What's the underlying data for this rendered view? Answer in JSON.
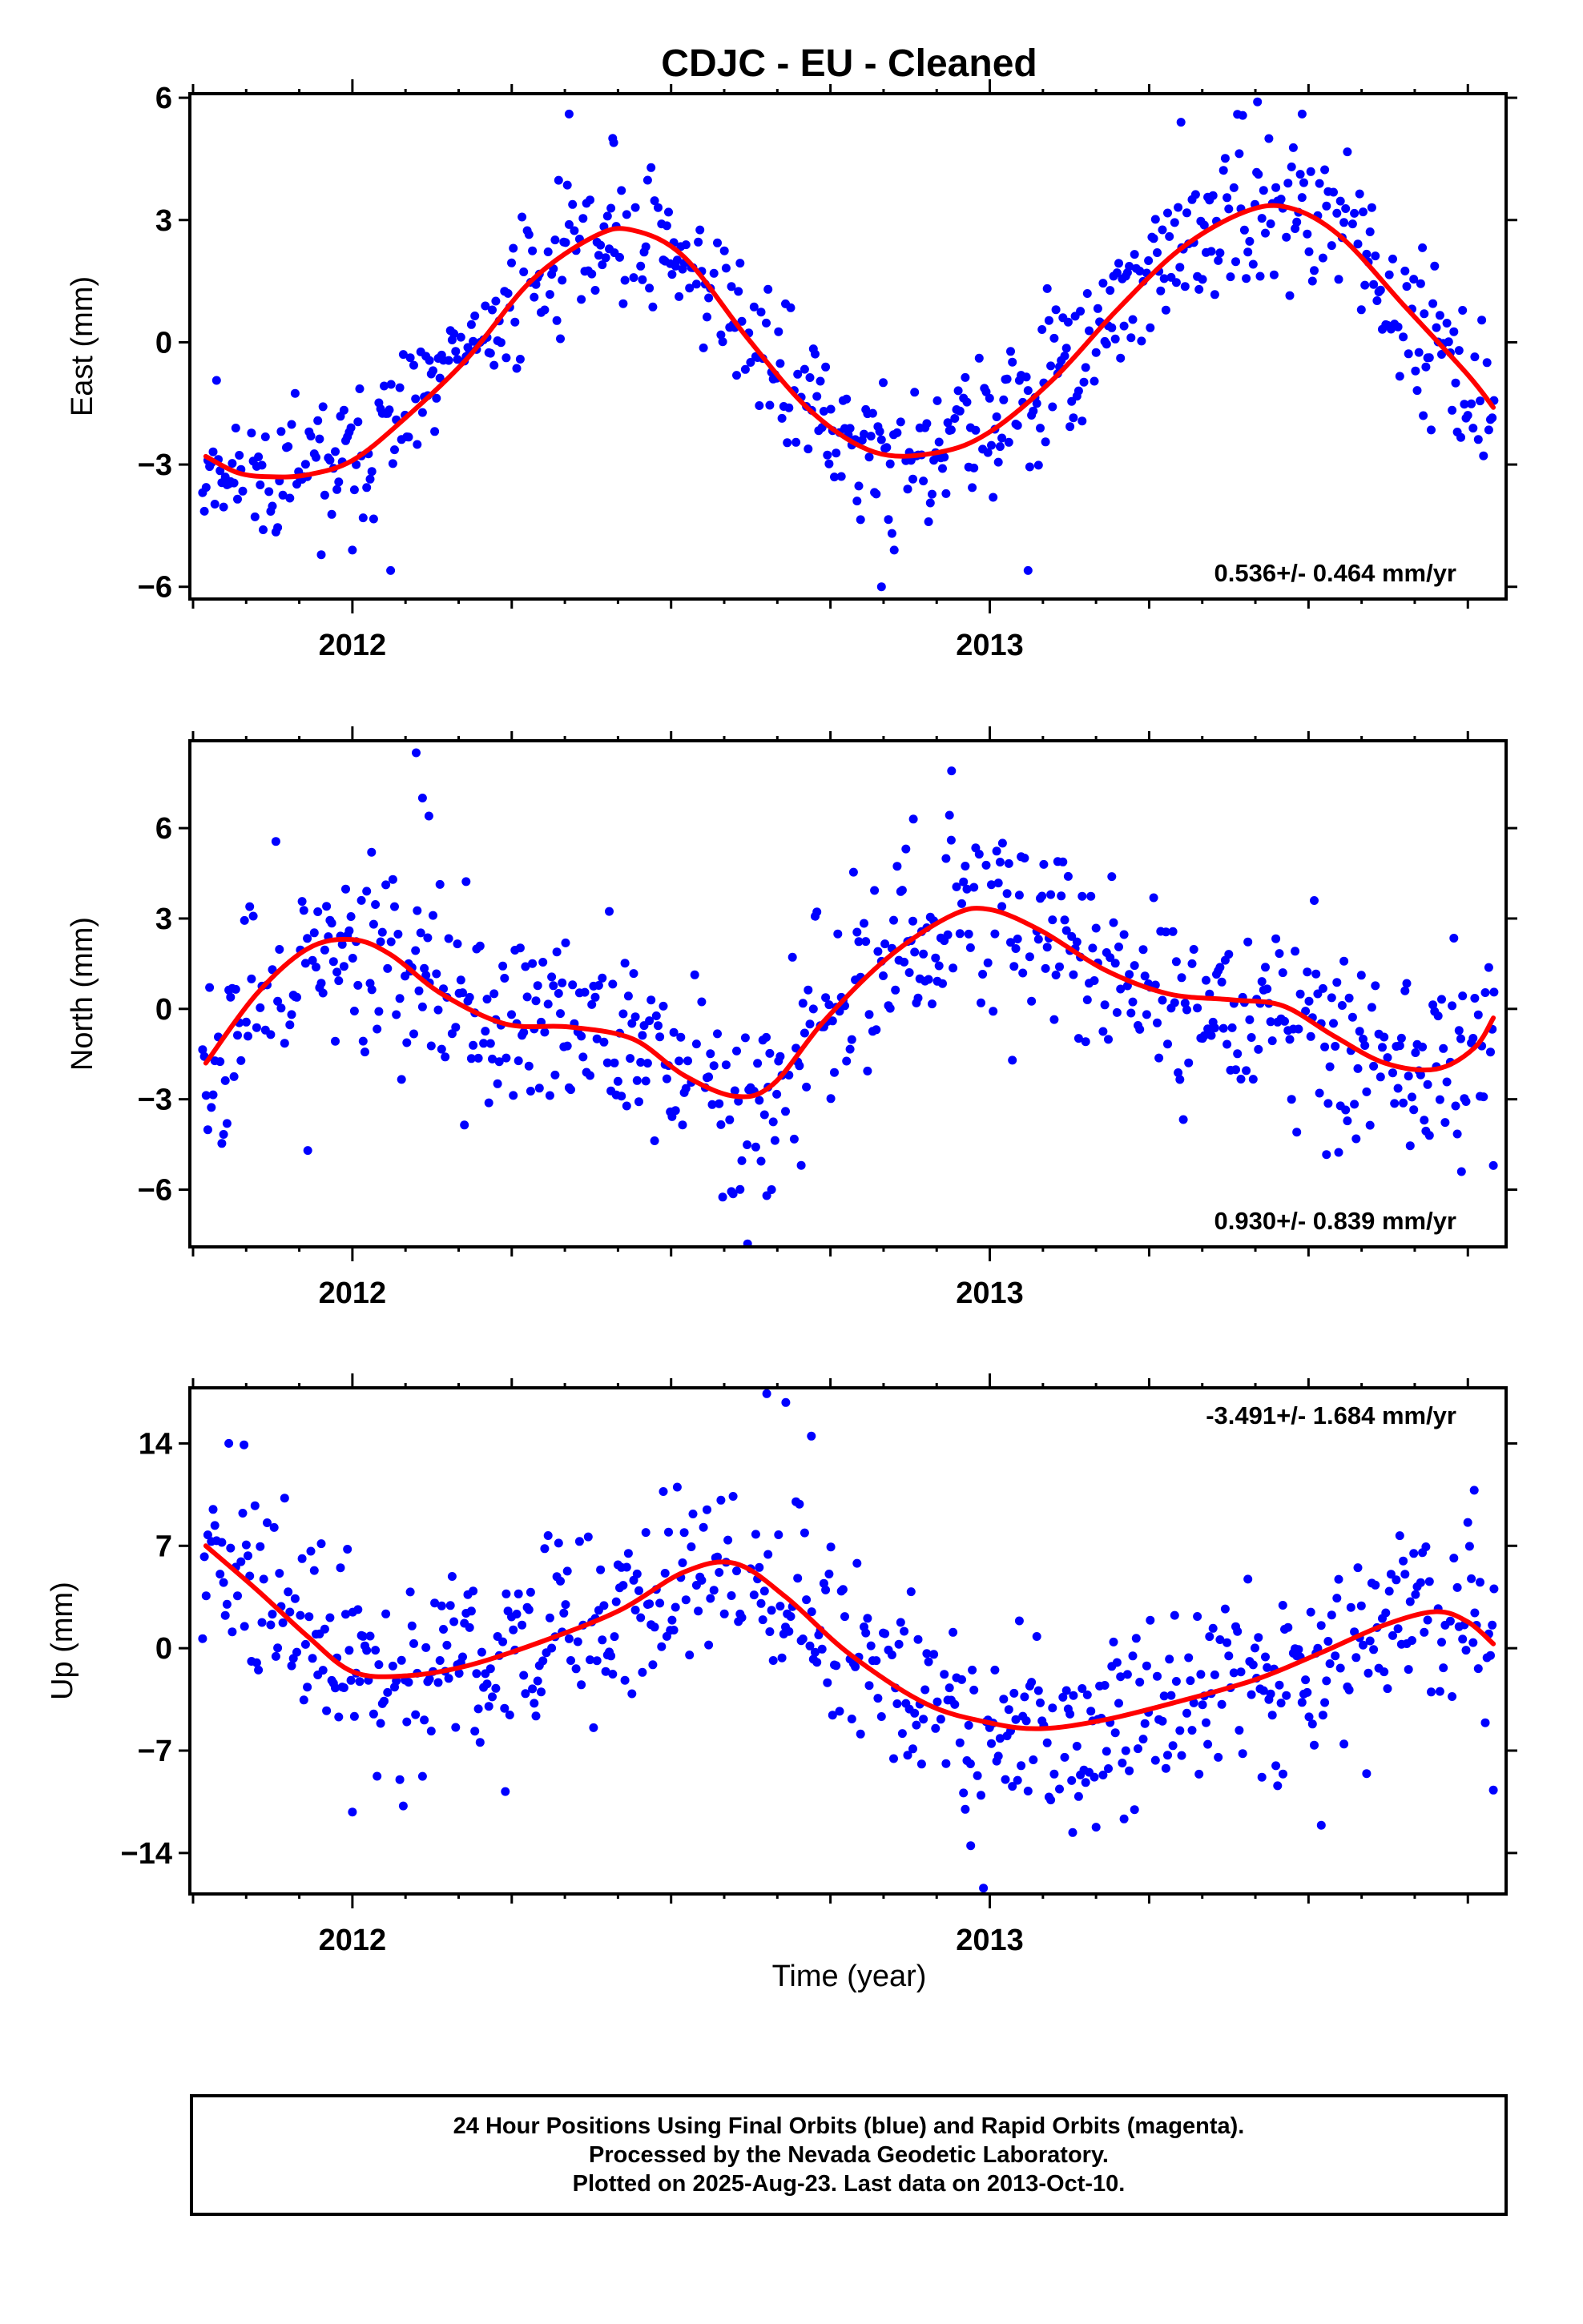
{
  "title": "CDJC  - EU - Cleaned",
  "xlabel": "Time (year)",
  "footer": {
    "line1": "24 Hour Positions Using Final Orbits (blue) and Rapid Orbits (magenta).",
    "line2": "Processed by the Nevada Geodetic Laboratory.",
    "line3": "Plotted on 2025-Aug-23. Last data on 2013-Oct-10."
  },
  "colors": {
    "points": "#0000ff",
    "fit": "#ff0000",
    "frame": "#000000"
  },
  "chart_data": [
    {
      "type": "scatter",
      "name": "east",
      "ylabel": "East (mm)",
      "rate_text": "0.536+/- 0.464 mm/yr",
      "xlim": [
        2011.745,
        2013.81
      ],
      "ylim": [
        -6.3,
        6.1
      ],
      "yticks": [
        -6,
        -3,
        0,
        3,
        6
      ],
      "xticks": [
        2012,
        2013
      ],
      "fit": {
        "x": [
          2011.77,
          2011.82,
          2011.87,
          2011.93,
          2012.0,
          2012.08,
          2012.18,
          2012.28,
          2012.38,
          2012.44,
          2012.52,
          2012.62,
          2012.72,
          2012.82,
          2012.92,
          2013.0,
          2013.1,
          2013.2,
          2013.3,
          2013.4,
          2013.47,
          2013.55,
          2013.65,
          2013.75,
          2013.79
        ],
        "y": [
          -2.8,
          -3.2,
          -3.3,
          -3.25,
          -2.9,
          -1.9,
          -0.4,
          1.5,
          2.6,
          2.75,
          2.1,
          0.1,
          -1.7,
          -2.7,
          -2.7,
          -2.2,
          -0.9,
          0.8,
          2.3,
          3.2,
          3.3,
          2.6,
          0.9,
          -0.8,
          -1.6
        ]
      },
      "points": {
        "seed": 11,
        "amplitude": 0.9,
        "outliers": [
          [
            2011.86,
            -4.6
          ],
          [
            2012.0,
            -5.1
          ],
          [
            2012.06,
            -5.6
          ],
          [
            2012.34,
            5.6
          ],
          [
            2012.41,
            4.9
          ],
          [
            2012.83,
            -6.0
          ],
          [
            2012.85,
            -5.1
          ],
          [
            2013.06,
            -5.6
          ],
          [
            2013.3,
            5.4
          ],
          [
            2013.42,
            5.9
          ],
          [
            2013.49,
            5.6
          ],
          [
            2013.68,
            -1.8
          ]
        ]
      }
    },
    {
      "type": "scatter",
      "name": "north",
      "ylabel": "North (mm)",
      "rate_text": "0.930+/- 0.839 mm/yr",
      "xlim": [
        2011.745,
        2013.81
      ],
      "ylim": [
        -7.9,
        8.9
      ],
      "yticks": [
        -6,
        -3,
        0,
        3,
        6
      ],
      "xticks": [
        2012,
        2013
      ],
      "fit": {
        "x": [
          2011.77,
          2011.85,
          2011.93,
          2012.0,
          2012.06,
          2012.14,
          2012.24,
          2012.34,
          2012.44,
          2012.52,
          2012.6,
          2012.66,
          2012.74,
          2012.84,
          2012.94,
          2013.0,
          2013.08,
          2013.18,
          2013.28,
          2013.38,
          2013.46,
          2013.54,
          2013.62,
          2013.7,
          2013.76,
          2013.79
        ],
        "y": [
          -1.8,
          0.5,
          2.0,
          2.3,
          1.8,
          0.5,
          -0.5,
          -0.6,
          -1.0,
          -2.2,
          -2.9,
          -2.5,
          -0.4,
          1.7,
          3.1,
          3.3,
          2.6,
          1.3,
          0.5,
          0.3,
          0.1,
          -0.9,
          -1.8,
          -2.0,
          -1.3,
          -0.3
        ]
      },
      "points": {
        "seed": 23,
        "amplitude": 1.6,
        "outliers": [
          [
            2011.93,
            -4.7
          ],
          [
            2012.1,
            8.5
          ],
          [
            2012.11,
            7.0
          ],
          [
            2012.12,
            6.4
          ],
          [
            2012.03,
            5.2
          ],
          [
            2012.62,
            -7.8
          ],
          [
            2012.65,
            -6.2
          ],
          [
            2012.94,
            7.9
          ],
          [
            2012.88,
            6.3
          ],
          [
            2013.02,
            5.5
          ],
          [
            2013.79,
            -5.2
          ],
          [
            2013.74,
            -5.4
          ]
        ]
      }
    },
    {
      "type": "scatter",
      "name": "up",
      "ylabel": "Up (mm)",
      "rate_text": "-3.491+/- 1.684 mm/yr",
      "xlim": [
        2011.745,
        2013.81
      ],
      "ylim": [
        -16.8,
        17.8
      ],
      "yticks": [
        -14,
        -7,
        0,
        7,
        14
      ],
      "xticks": [
        2012,
        2013
      ],
      "fit": {
        "x": [
          2011.77,
          2011.85,
          2011.93,
          2012.0,
          2012.08,
          2012.18,
          2012.3,
          2012.42,
          2012.52,
          2012.6,
          2012.68,
          2012.78,
          2012.9,
          2013.0,
          2013.08,
          2013.18,
          2013.3,
          2013.42,
          2013.52,
          2013.62,
          2013.7,
          2013.75,
          2013.79
        ],
        "y": [
          7.0,
          4.0,
          0.8,
          -1.6,
          -1.9,
          -1.2,
          0.5,
          2.6,
          5.2,
          5.8,
          3.5,
          -0.4,
          -3.8,
          -5.1,
          -5.5,
          -4.9,
          -3.6,
          -2.1,
          -0.3,
          1.6,
          2.5,
          1.8,
          0.3
        ]
      },
      "points": {
        "seed": 37,
        "amplitude": 3.3,
        "outliers": [
          [
            2011.83,
            13.9
          ],
          [
            2012.0,
            -11.2
          ],
          [
            2012.24,
            -9.8
          ],
          [
            2012.65,
            17.4
          ],
          [
            2012.68,
            16.8
          ],
          [
            2012.72,
            14.5
          ],
          [
            2012.99,
            -16.4
          ],
          [
            2012.97,
            -13.5
          ],
          [
            2013.13,
            -12.6
          ],
          [
            2013.52,
            -12.1
          ],
          [
            2013.76,
            10.8
          ],
          [
            2013.79,
            -9.7
          ],
          [
            2013.46,
            -8.6
          ]
        ]
      }
    }
  ]
}
